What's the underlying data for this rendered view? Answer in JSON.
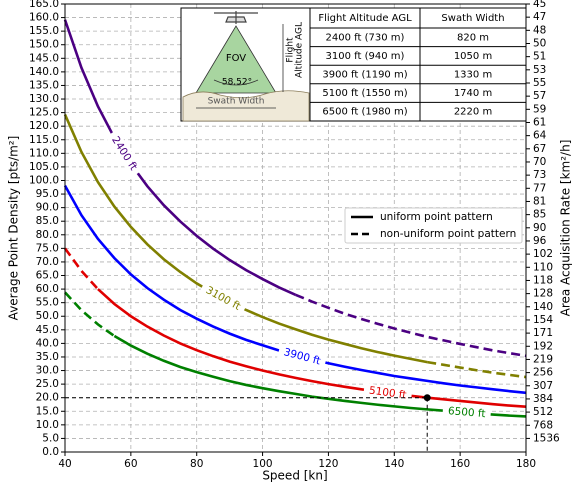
{
  "chart_data": {
    "type": "line",
    "xlabel": "Speed [kn]",
    "ylabel": "Average Point Density [pts/m²]",
    "y2label": "Area Acquisition Rate [km²/h]",
    "xlim": [
      40,
      180
    ],
    "xticks": [
      40,
      60,
      80,
      100,
      120,
      140,
      160,
      180
    ],
    "ylim": [
      0,
      165
    ],
    "yticks": [
      {
        "value": 0,
        "label": "0.0"
      },
      {
        "value": 5,
        "label": "5.0"
      },
      {
        "value": 10,
        "label": "10.0"
      },
      {
        "value": 15,
        "label": "15.0"
      },
      {
        "value": 20,
        "label": "20.0"
      },
      {
        "value": 25,
        "label": "25.0"
      },
      {
        "value": 30,
        "label": "30.0"
      },
      {
        "value": 35,
        "label": "35.0"
      },
      {
        "value": 40,
        "label": "40.0"
      },
      {
        "value": 45,
        "label": "45.0"
      },
      {
        "value": 50,
        "label": "50.0"
      },
      {
        "value": 55,
        "label": "55.0"
      },
      {
        "value": 60,
        "label": "60.0"
      },
      {
        "value": 65,
        "label": "65.0"
      },
      {
        "value": 70,
        "label": "70.0"
      },
      {
        "value": 75,
        "label": "75.0"
      },
      {
        "value": 80,
        "label": "80.0"
      },
      {
        "value": 85,
        "label": "85.0"
      },
      {
        "value": 90,
        "label": "90.0"
      },
      {
        "value": 95,
        "label": "95.0"
      },
      {
        "value": 100,
        "label": "100.0"
      },
      {
        "value": 105,
        "label": "105.0"
      },
      {
        "value": 110,
        "label": "110.0"
      },
      {
        "value": 115,
        "label": "115.0"
      },
      {
        "value": 120,
        "label": "120.0"
      },
      {
        "value": 125,
        "label": "125.0"
      },
      {
        "value": 130,
        "label": "130.0"
      },
      {
        "value": 135,
        "label": "135.0"
      },
      {
        "value": 140,
        "label": "140.0"
      },
      {
        "value": 145,
        "label": "145.0"
      },
      {
        "value": 150,
        "label": "150.0"
      },
      {
        "value": 155,
        "label": "155.0"
      },
      {
        "value": 160,
        "label": "160.0"
      },
      {
        "value": 165,
        "label": "165.0"
      }
    ],
    "y2ticks": [
      1536,
      768,
      512,
      384,
      307,
      256,
      219,
      192,
      171,
      154,
      140,
      128,
      118,
      110,
      102,
      96,
      90,
      85,
      81,
      77,
      73,
      70,
      67,
      64,
      61,
      59,
      57,
      55,
      53,
      51,
      50,
      48,
      47,
      45
    ],
    "grid": true,
    "x": [
      40,
      45,
      50,
      55,
      60,
      65,
      70,
      75,
      80,
      85,
      90,
      95,
      100,
      105,
      110,
      115,
      120,
      125,
      130,
      135,
      140,
      145,
      150,
      155,
      160,
      165,
      170,
      175,
      180
    ],
    "series": [
      {
        "name": "2400 ft",
        "color": "#4b0082",
        "dashed_range": [
          110,
          180
        ],
        "values": [
          159.2,
          141.5,
          127.3,
          115.7,
          106.1,
          97.9,
          90.9,
          84.9,
          79.6,
          74.9,
          70.7,
          67.0,
          63.7,
          60.6,
          57.9,
          55.4,
          53.1,
          50.9,
          49.0,
          47.2,
          45.5,
          43.9,
          42.4,
          41.1,
          39.8,
          38.6,
          37.4,
          36.4,
          35.4
        ]
      },
      {
        "name": "3100 ft",
        "color": "#808000",
        "dashed_range": [
          150,
          180
        ],
        "values": [
          124.3,
          110.5,
          99.4,
          90.4,
          82.9,
          76.5,
          71.0,
          66.3,
          62.1,
          58.5,
          55.2,
          52.3,
          49.7,
          47.3,
          45.2,
          43.2,
          41.4,
          39.8,
          38.2,
          36.8,
          35.5,
          34.3,
          33.1,
          32.1,
          31.1,
          30.1,
          29.2,
          28.4,
          27.6
        ]
      },
      {
        "name": "3900 ft",
        "color": "#0000ff",
        "values": [
          98.1,
          87.2,
          78.5,
          71.4,
          65.4,
          60.4,
          56.1,
          52.3,
          49.1,
          46.2,
          43.6,
          41.3,
          39.3,
          37.4,
          35.7,
          34.1,
          32.7,
          31.4,
          30.2,
          29.1,
          28.0,
          27.1,
          26.2,
          25.3,
          24.5,
          23.8,
          23.1,
          22.4,
          21.8
        ]
      },
      {
        "name": "5100 ft",
        "color": "#e00000",
        "dashed_range": [
          40,
          50
        ],
        "values": [
          75.0,
          66.7,
          60.0,
          54.5,
          50.0,
          46.2,
          42.9,
          40.0,
          37.5,
          35.3,
          33.3,
          31.6,
          30.0,
          28.6,
          27.3,
          26.1,
          25.0,
          24.0,
          23.1,
          22.2,
          21.4,
          20.7,
          20.0,
          19.4,
          18.8,
          18.2,
          17.6,
          17.1,
          16.7
        ]
      },
      {
        "name": "6500 ft",
        "color": "#008000",
        "dashed_range": [
          40,
          55
        ],
        "values": [
          58.8,
          52.2,
          47.0,
          42.7,
          39.2,
          36.2,
          33.6,
          31.3,
          29.4,
          27.7,
          26.1,
          24.7,
          23.5,
          22.4,
          21.4,
          20.4,
          19.6,
          18.8,
          18.1,
          17.4,
          16.8,
          16.2,
          15.7,
          15.2,
          14.7,
          14.2,
          13.8,
          13.4,
          13.1
        ]
      }
    ],
    "marker": {
      "x": 150,
      "y": 20
    },
    "legend": [
      {
        "label": "uniform point pattern",
        "dashed": false
      },
      {
        "label": "non-uniform point pattern",
        "dashed": true
      }
    ],
    "inset": {
      "diagram": {
        "fov": "FOV",
        "angle": "58.52°",
        "swath": "Swath Width",
        "altitude": [
          "Flight",
          "Altitude AGL"
        ]
      },
      "table": {
        "header": [
          "Flight Altitude AGL",
          "Swath Width"
        ],
        "rows": [
          [
            "2400 ft (730 m)",
            "820 m"
          ],
          [
            "3100 ft (940 m)",
            "1050 m"
          ],
          [
            "3900 ft (1190 m)",
            "1330 m"
          ],
          [
            "5100 ft (1550 m)",
            "1740 m"
          ],
          [
            "6500 ft (1980 m)",
            "2220 m"
          ]
        ]
      }
    }
  }
}
